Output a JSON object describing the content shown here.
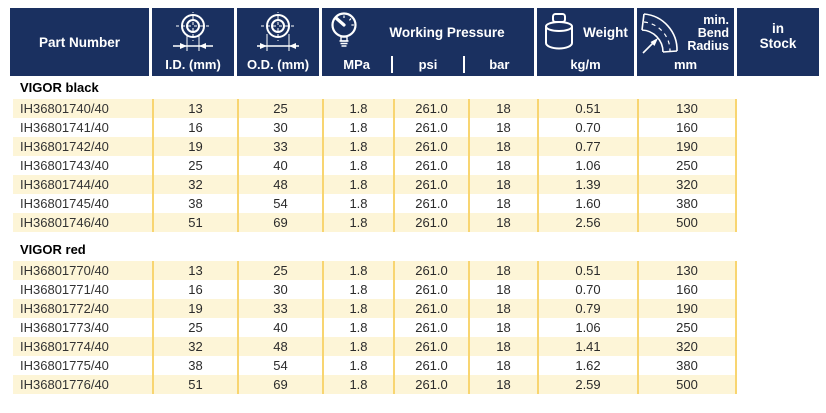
{
  "header": {
    "part_number": "Part Number",
    "id_label": "I.D. (mm)",
    "od_label": "O.D. (mm)",
    "wp_title": "Working Pressure",
    "wp_units": [
      "MPa",
      "psi",
      "bar"
    ],
    "weight_title": "Weight",
    "weight_unit": "kg/m",
    "bend_line1": "min.",
    "bend_line2": "Bend",
    "bend_line3": "Radius",
    "bend_unit": "mm",
    "stock_line1": "in",
    "stock_line2": "Stock",
    "icons": [
      "inner-diameter-icon",
      "outer-diameter-icon",
      "pressure-gauge-icon",
      "weight-icon",
      "bend-radius-icon"
    ]
  },
  "colors": {
    "header_navy": "#1a3060",
    "row_stripe_cream": "#fdf5d7",
    "separator_yellow": "#f8d571",
    "text": "#2b2b2b"
  },
  "table": {
    "column_keys": [
      "part",
      "id",
      "od",
      "mpa",
      "psi",
      "bar",
      "kgm",
      "bend"
    ],
    "groups": [
      {
        "name": "VIGOR black",
        "rows": [
          [
            "IH36801740/40",
            "13",
            "25",
            "1.8",
            "261.0",
            "18",
            "0.51",
            "130"
          ],
          [
            "IH36801741/40",
            "16",
            "30",
            "1.8",
            "261.0",
            "18",
            "0.70",
            "160"
          ],
          [
            "IH36801742/40",
            "19",
            "33",
            "1.8",
            "261.0",
            "18",
            "0.77",
            "190"
          ],
          [
            "IH36801743/40",
            "25",
            "40",
            "1.8",
            "261.0",
            "18",
            "1.06",
            "250"
          ],
          [
            "IH36801744/40",
            "32",
            "48",
            "1.8",
            "261.0",
            "18",
            "1.39",
            "320"
          ],
          [
            "IH36801745/40",
            "38",
            "54",
            "1.8",
            "261.0",
            "18",
            "1.60",
            "380"
          ],
          [
            "IH36801746/40",
            "51",
            "69",
            "1.8",
            "261.0",
            "18",
            "2.56",
            "500"
          ]
        ]
      },
      {
        "name": "VIGOR red",
        "rows": [
          [
            "IH36801770/40",
            "13",
            "25",
            "1.8",
            "261.0",
            "18",
            "0.51",
            "130"
          ],
          [
            "IH36801771/40",
            "16",
            "30",
            "1.8",
            "261.0",
            "18",
            "0.70",
            "160"
          ],
          [
            "IH36801772/40",
            "19",
            "33",
            "1.8",
            "261.0",
            "18",
            "0.79",
            "190"
          ],
          [
            "IH36801773/40",
            "25",
            "40",
            "1.8",
            "261.0",
            "18",
            "1.06",
            "250"
          ],
          [
            "IH36801774/40",
            "32",
            "48",
            "1.8",
            "261.0",
            "18",
            "1.41",
            "320"
          ],
          [
            "IH36801775/40",
            "38",
            "54",
            "1.8",
            "261.0",
            "18",
            "1.62",
            "380"
          ],
          [
            "IH36801776/40",
            "51",
            "69",
            "1.8",
            "261.0",
            "18",
            "2.59",
            "500"
          ]
        ]
      }
    ]
  }
}
